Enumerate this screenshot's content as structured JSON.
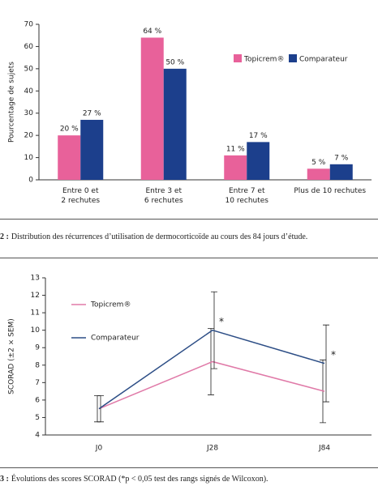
{
  "chart_data": [
    {
      "type": "bar",
      "y_label": "Pourcentage de sujets",
      "categories": [
        "Entre 0 et\n2 rechutes",
        "Entre 3 et\n6 rechutes",
        "Entre 7 et\n10 rechutes",
        "Plus de 10 rechutes"
      ],
      "series": [
        {
          "name": "Topicrem®",
          "color": "#e8619a",
          "values": [
            20,
            64,
            11,
            5
          ],
          "value_labels": [
            "20 %",
            "64 %",
            "11 %",
            "5 %"
          ]
        },
        {
          "name": "Comparateur",
          "color": "#1c3f8c",
          "values": [
            27,
            50,
            17,
            7
          ],
          "value_labels": [
            "27 %",
            "50 %",
            "17 %",
            "7 %"
          ]
        }
      ],
      "ylim": [
        0,
        70
      ],
      "yticks": [
        0,
        10,
        20,
        30,
        40,
        50,
        60,
        70
      ],
      "grid": false,
      "legend": "upper right"
    },
    {
      "type": "line",
      "y_label": "SCORAD (±2 × SEM)",
      "categories": [
        "J0",
        "J28",
        "J84"
      ],
      "series": [
        {
          "name": "Topicrem®",
          "color": "#e07aa8",
          "values": [
            5.5,
            8.2,
            6.5
          ],
          "errors": [
            0.75,
            1.9,
            1.8
          ]
        },
        {
          "name": "Comparateur",
          "color": "#2d4e86",
          "values": [
            5.5,
            10.0,
            8.1
          ],
          "errors": [
            0.75,
            2.2,
            2.2
          ]
        }
      ],
      "annotations": [
        {
          "text": "*",
          "series": "Comparateur",
          "x": "J28"
        },
        {
          "text": "*",
          "series": "Comparateur",
          "x": "J84"
        }
      ],
      "ylim": [
        4,
        13
      ],
      "yticks": [
        4,
        5,
        6,
        7,
        8,
        9,
        10,
        11,
        12,
        13
      ],
      "grid": false,
      "legend": "upper left"
    }
  ],
  "captions": [
    {
      "label": "2 :",
      "text": "Distribution des récurrences d’utilisation de dermocorticoïde au cours des 84 jours d’étude."
    },
    {
      "label": "3 :",
      "text": "Évolutions des scores SCORAD (*p < 0,05 test des rangs signés de Wilcoxon)."
    }
  ]
}
